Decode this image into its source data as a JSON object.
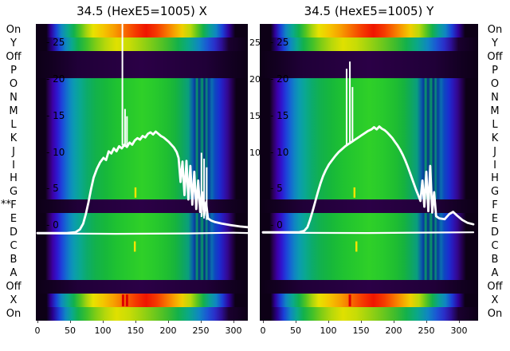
{
  "figure": {
    "background": "#ffffff",
    "text_color": "#000000"
  },
  "chart_data": {
    "type": "heatmap",
    "description": "Two wire-scanner beam-profile heatmaps (X and Y planes) with white intensity profile curves overlaid; rows correspond to device channels listed at left/right margins.",
    "starred_marker": "**",
    "x_ticks": [
      0,
      50,
      100,
      150,
      200,
      250,
      300
    ],
    "x_tick_labels": [
      "0",
      "50",
      "100",
      "150",
      "200",
      "250",
      "300"
    ],
    "y_ticks": [
      25,
      20,
      15,
      10,
      5,
      0
    ],
    "y_tick_labels": [
      "- 25",
      "- 20",
      "- 15",
      "- 10",
      "- 5",
      "- 0"
    ],
    "gap_ticks": [
      25,
      20,
      15,
      10
    ],
    "gap_tick_labels": [
      "25",
      "20",
      "15",
      "10"
    ],
    "x_range": [
      0,
      322
    ],
    "y_range": [
      -13,
      28
    ],
    "grid": false,
    "profile_color": "#ffffff",
    "red_marker_color": "#dd0000",
    "streak_color": "#ffe400",
    "rows": [
      {
        "label": "On",
        "band": "rainbowA"
      },
      {
        "label": "Y",
        "band": "rainbowB"
      },
      {
        "label": "Off",
        "band": "dark"
      },
      {
        "label": "P",
        "band": "dark"
      },
      {
        "label": "O",
        "band": "body"
      },
      {
        "label": "N",
        "band": "body"
      },
      {
        "label": "M",
        "band": "body"
      },
      {
        "label": "L",
        "band": "body"
      },
      {
        "label": "K",
        "band": "body"
      },
      {
        "label": "J",
        "band": "body"
      },
      {
        "label": "I",
        "band": "body"
      },
      {
        "label": "H",
        "band": "body"
      },
      {
        "label": "G",
        "band": "body"
      },
      {
        "label": "F",
        "band": "dark",
        "starred": true
      },
      {
        "label": "E",
        "band": "body"
      },
      {
        "label": "D",
        "band": "body"
      },
      {
        "label": "C",
        "band": "body"
      },
      {
        "label": "B",
        "band": "body"
      },
      {
        "label": "A",
        "band": "body"
      },
      {
        "label": "Off",
        "band": "dark"
      },
      {
        "label": "X",
        "band": "rainbowA",
        "red_lines": true
      },
      {
        "label": "On",
        "band": "rainbowB"
      }
    ],
    "gradients": {
      "body": [
        [
          0,
          "#0d0016"
        ],
        [
          0.045,
          "#0d0016"
        ],
        [
          0.06,
          "#2a0055"
        ],
        [
          0.08,
          "#3c00a8"
        ],
        [
          0.1,
          "#2f16cf"
        ],
        [
          0.12,
          "#1f3fda"
        ],
        [
          0.14,
          "#1565d2"
        ],
        [
          0.16,
          "#0f86c2"
        ],
        [
          0.18,
          "#0b9bb0"
        ],
        [
          0.21,
          "#0aa88f"
        ],
        [
          0.24,
          "#0cab6b"
        ],
        [
          0.28,
          "#12b14c"
        ],
        [
          0.33,
          "#17b83a"
        ],
        [
          0.38,
          "#1fc231"
        ],
        [
          0.44,
          "#27c92c"
        ],
        [
          0.5,
          "#2fd028"
        ],
        [
          0.56,
          "#28ca2c"
        ],
        [
          0.62,
          "#1fbe31"
        ],
        [
          0.66,
          "#16b33e"
        ],
        [
          0.69,
          "#0fa85b"
        ],
        [
          0.72,
          "#0a9e7e"
        ],
        [
          0.74,
          "#0a5fa8"
        ],
        [
          0.75,
          "#083a9e"
        ],
        [
          0.76,
          "#0a9e66"
        ],
        [
          0.77,
          "#072f91"
        ],
        [
          0.785,
          "#0a9e66"
        ],
        [
          0.795,
          "#062a88"
        ],
        [
          0.805,
          "#0a8f7a"
        ],
        [
          0.815,
          "#083a9e"
        ],
        [
          0.83,
          "#0b6fb0"
        ],
        [
          0.845,
          "#0d47c0"
        ],
        [
          0.865,
          "#1a2ed0"
        ],
        [
          0.885,
          "#2b17b8"
        ],
        [
          0.905,
          "#33078f"
        ],
        [
          0.925,
          "#240050"
        ],
        [
          0.945,
          "#0d0016"
        ],
        [
          1,
          "#0d0016"
        ]
      ],
      "rainbowA": [
        [
          0,
          "#0d0016"
        ],
        [
          0.05,
          "#0d0016"
        ],
        [
          0.07,
          "#30009a"
        ],
        [
          0.095,
          "#1b3fd8"
        ],
        [
          0.12,
          "#0f86c2"
        ],
        [
          0.15,
          "#0aa88f"
        ],
        [
          0.18,
          "#12b14c"
        ],
        [
          0.21,
          "#52c420"
        ],
        [
          0.24,
          "#a8d40e"
        ],
        [
          0.27,
          "#e8e200"
        ],
        [
          0.32,
          "#f5c400"
        ],
        [
          0.37,
          "#f79e00"
        ],
        [
          0.42,
          "#f76b00"
        ],
        [
          0.47,
          "#f53a00"
        ],
        [
          0.52,
          "#ef1500"
        ],
        [
          0.57,
          "#f53a00"
        ],
        [
          0.61,
          "#f76b00"
        ],
        [
          0.65,
          "#f79e00"
        ],
        [
          0.69,
          "#f0cf00"
        ],
        [
          0.73,
          "#b8d80a"
        ],
        [
          0.76,
          "#5fc61e"
        ],
        [
          0.79,
          "#14b14a"
        ],
        [
          0.82,
          "#0aa195"
        ],
        [
          0.85,
          "#0f86c2"
        ],
        [
          0.88,
          "#1b3fd8"
        ],
        [
          0.91,
          "#30009a"
        ],
        [
          0.94,
          "#0d0016"
        ],
        [
          1,
          "#0d0016"
        ]
      ],
      "rainbowB": [
        [
          0,
          "#0d0016"
        ],
        [
          0.05,
          "#0d0016"
        ],
        [
          0.08,
          "#2a0090"
        ],
        [
          0.11,
          "#1b3fd8"
        ],
        [
          0.14,
          "#0f86c2"
        ],
        [
          0.17,
          "#0aa88f"
        ],
        [
          0.2,
          "#12b14c"
        ],
        [
          0.24,
          "#3fc02a"
        ],
        [
          0.28,
          "#7ccc16"
        ],
        [
          0.33,
          "#b8d80a"
        ],
        [
          0.38,
          "#e0e000"
        ],
        [
          0.44,
          "#c8dc06"
        ],
        [
          0.5,
          "#9cd210"
        ],
        [
          0.56,
          "#6ec81c"
        ],
        [
          0.62,
          "#3fbc2c"
        ],
        [
          0.67,
          "#14b14a"
        ],
        [
          0.72,
          "#0aa888"
        ],
        [
          0.77,
          "#0f86c2"
        ],
        [
          0.81,
          "#1b55d4"
        ],
        [
          0.845,
          "#2a2ec8"
        ],
        [
          0.875,
          "#2d109a"
        ],
        [
          0.91,
          "#1a0030"
        ],
        [
          1,
          "#0d0016"
        ]
      ],
      "dark": [
        [
          0,
          "#0d0016"
        ],
        [
          0.07,
          "#120020"
        ],
        [
          0.2,
          "#200038"
        ],
        [
          0.5,
          "#2b0046"
        ],
        [
          0.8,
          "#200038"
        ],
        [
          0.93,
          "#120020"
        ],
        [
          1,
          "#0d0016"
        ]
      ]
    },
    "plots": [
      {
        "title": "34.5 (HexE5=1005) X",
        "plane": "X",
        "profile": [
          [
            0,
            -1.0
          ],
          [
            45,
            -1.0
          ],
          [
            58,
            -0.9
          ],
          [
            65,
            -0.5
          ],
          [
            70,
            0.3
          ],
          [
            74,
            1.6
          ],
          [
            78,
            3.2
          ],
          [
            82,
            5.0
          ],
          [
            86,
            6.6
          ],
          [
            91,
            7.8
          ],
          [
            96,
            8.7
          ],
          [
            101,
            9.3
          ],
          [
            105,
            9.0
          ],
          [
            109,
            10.2
          ],
          [
            113,
            9.9
          ],
          [
            117,
            10.6
          ],
          [
            121,
            10.2
          ],
          [
            125,
            10.9
          ],
          [
            129,
            10.6
          ],
          [
            133,
            11.1
          ],
          [
            137,
            10.8
          ],
          [
            141,
            11.4
          ],
          [
            145,
            11.1
          ],
          [
            149,
            11.7
          ],
          [
            153,
            12.0
          ],
          [
            157,
            11.8
          ],
          [
            161,
            12.3
          ],
          [
            165,
            12.1
          ],
          [
            169,
            12.6
          ],
          [
            173,
            12.8
          ],
          [
            177,
            12.5
          ],
          [
            181,
            12.9
          ],
          [
            185,
            12.6
          ],
          [
            189,
            12.3
          ],
          [
            193,
            12.1
          ],
          [
            197,
            11.8
          ],
          [
            201,
            11.5
          ],
          [
            205,
            11.1
          ],
          [
            209,
            10.7
          ],
          [
            213,
            10.1
          ],
          [
            216,
            9.3
          ],
          [
            219,
            6.0
          ],
          [
            222,
            8.8
          ],
          [
            225,
            4.2
          ],
          [
            228,
            8.9
          ],
          [
            231,
            3.6
          ],
          [
            234,
            8.2
          ],
          [
            237,
            2.9
          ],
          [
            240,
            7.4
          ],
          [
            243,
            2.3
          ],
          [
            246,
            6.2
          ],
          [
            249,
            1.9
          ],
          [
            252,
            4.6
          ],
          [
            255,
            1.4
          ],
          [
            258,
            3.2
          ],
          [
            261,
            1.0
          ],
          [
            266,
            0.7
          ],
          [
            272,
            0.5
          ],
          [
            282,
            0.3
          ],
          [
            295,
            0.1
          ],
          [
            310,
            -0.1
          ],
          [
            322,
            -0.2
          ]
        ],
        "baseline": [
          [
            0,
            -1.05
          ],
          [
            120,
            -1.1
          ],
          [
            230,
            -1.05
          ],
          [
            300,
            -0.95
          ],
          [
            322,
            -1.0
          ]
        ],
        "spikes": [
          [
            130,
            11,
            28.5
          ],
          [
            134,
            10.9,
            16
          ],
          [
            137,
            10.8,
            15
          ],
          [
            251,
            1.2,
            10
          ],
          [
            255,
            1.0,
            9.2
          ],
          [
            259,
            0.8,
            8
          ]
        ],
        "red_lines": [
          131,
          137
        ],
        "yellow_streaks": [
          {
            "x": 150,
            "row": 12
          },
          {
            "x": 149,
            "row": 16
          }
        ]
      },
      {
        "title": "34.5 (HexE5=1005) Y",
        "plane": "Y",
        "profile": [
          [
            0,
            -0.9
          ],
          [
            55,
            -0.9
          ],
          [
            63,
            -0.7
          ],
          [
            68,
            -0.2
          ],
          [
            72,
            0.8
          ],
          [
            76,
            2.0
          ],
          [
            80,
            3.3
          ],
          [
            84,
            4.6
          ],
          [
            88,
            5.8
          ],
          [
            92,
            6.8
          ],
          [
            96,
            7.6
          ],
          [
            101,
            8.4
          ],
          [
            106,
            9.0
          ],
          [
            111,
            9.6
          ],
          [
            116,
            10.1
          ],
          [
            121,
            10.5
          ],
          [
            126,
            10.9
          ],
          [
            131,
            11.2
          ],
          [
            136,
            11.5
          ],
          [
            141,
            11.8
          ],
          [
            146,
            12.1
          ],
          [
            151,
            12.4
          ],
          [
            156,
            12.7
          ],
          [
            161,
            13.0
          ],
          [
            166,
            13.2
          ],
          [
            170,
            13.5
          ],
          [
            174,
            13.2
          ],
          [
            178,
            13.6
          ],
          [
            182,
            13.3
          ],
          [
            186,
            13.1
          ],
          [
            190,
            12.8
          ],
          [
            194,
            12.4
          ],
          [
            198,
            12.0
          ],
          [
            202,
            11.5
          ],
          [
            206,
            11.0
          ],
          [
            210,
            10.4
          ],
          [
            214,
            9.7
          ],
          [
            218,
            8.9
          ],
          [
            222,
            8.0
          ],
          [
            226,
            7.0
          ],
          [
            230,
            6.0
          ],
          [
            234,
            5.0
          ],
          [
            238,
            4.1
          ],
          [
            241,
            3.4
          ],
          [
            244,
            6.2
          ],
          [
            247,
            2.6
          ],
          [
            250,
            7.4
          ],
          [
            253,
            2.0
          ],
          [
            256,
            8.2
          ],
          [
            259,
            1.8
          ],
          [
            262,
            4.6
          ],
          [
            265,
            1.3
          ],
          [
            270,
            1.0
          ],
          [
            278,
            0.9
          ],
          [
            285,
            1.6
          ],
          [
            291,
            1.9
          ],
          [
            297,
            1.4
          ],
          [
            305,
            0.8
          ],
          [
            313,
            0.4
          ],
          [
            322,
            0.2
          ]
        ],
        "baseline": [
          [
            0,
            -0.95
          ],
          [
            160,
            -1.0
          ],
          [
            322,
            -0.9
          ]
        ],
        "spikes": [
          [
            128,
            11,
            21.5
          ],
          [
            133,
            11.3,
            22.5
          ],
          [
            137,
            11.6,
            19
          ]
        ],
        "red_lines": [
          133
        ],
        "yellow_streaks": [
          {
            "x": 140,
            "row": 12
          },
          {
            "x": 143,
            "row": 16
          }
        ]
      }
    ]
  }
}
